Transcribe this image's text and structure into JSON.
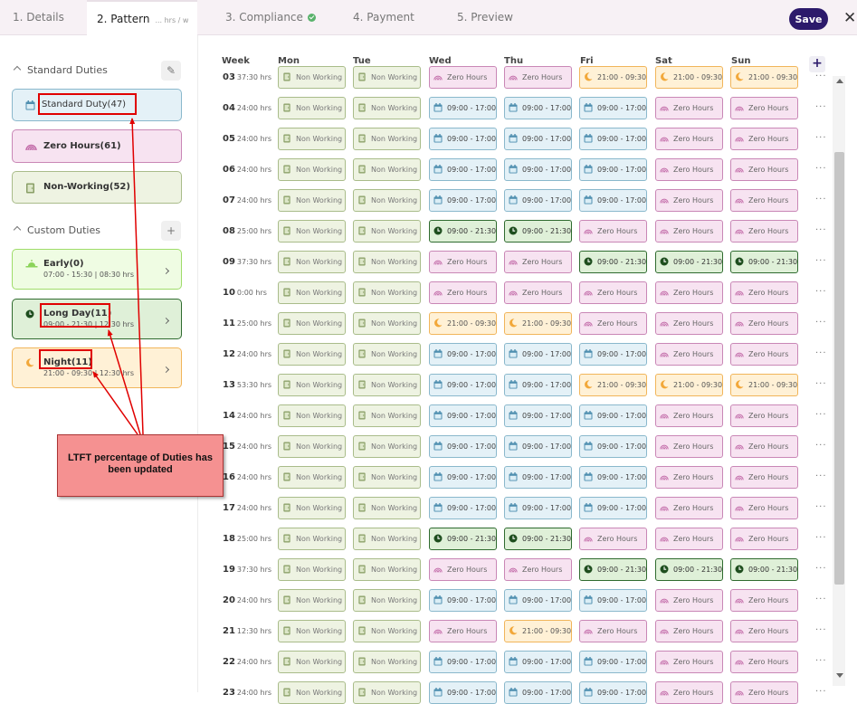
{
  "tabs": [
    {
      "label": "1. Details"
    },
    {
      "label": "2. Pattern",
      "sub": "... hrs / w"
    },
    {
      "label": "3. Compliance"
    },
    {
      "label": "4. Payment"
    },
    {
      "label": "5. Preview"
    }
  ],
  "save_label": "Save",
  "close_glyph": "✕",
  "sidebar": {
    "standard_title": "Standard Duties",
    "custom_title": "Custom Duties",
    "edit_glyph": "✎",
    "add_glyph": "+",
    "standard": [
      {
        "label": "Standard Duty(47)"
      },
      {
        "label": "Zero Hours(61)"
      },
      {
        "label": "Non-Working(52)"
      }
    ],
    "custom": [
      {
        "label": "Early(0)",
        "meta": "07:00 - 15:30 | 08:30 hrs"
      },
      {
        "label": "Long Day(11)",
        "meta": "09:00 - 21:30 | 12:30 hrs"
      },
      {
        "label": "Night(11)",
        "meta": "21:00 - 09:30 | 12:30 hrs"
      }
    ]
  },
  "grid": {
    "headers": [
      "Week",
      "Mon",
      "Tue",
      "Wed",
      "Thu",
      "Fri",
      "Sat",
      "Sun"
    ],
    "add_glyph": "+",
    "dots": "···",
    "labels": {
      "std": "09:00 - 17:00",
      "zero": "Zero Hours",
      "non": "Non Working",
      "long": "09:00 - 21:30",
      "night": "21:00 - 09:30"
    },
    "rows": [
      {
        "week": "03",
        "hrs": "37:30 hrs",
        "cells": [
          "non",
          "non",
          "zero",
          "zero",
          "night",
          "night",
          "night"
        ]
      },
      {
        "week": "04",
        "hrs": "24:00 hrs",
        "cells": [
          "non",
          "non",
          "std",
          "std",
          "std",
          "zero",
          "zero"
        ]
      },
      {
        "week": "05",
        "hrs": "24:00 hrs",
        "cells": [
          "non",
          "non",
          "std",
          "std",
          "std",
          "zero",
          "zero"
        ]
      },
      {
        "week": "06",
        "hrs": "24:00 hrs",
        "cells": [
          "non",
          "non",
          "std",
          "std",
          "std",
          "zero",
          "zero"
        ]
      },
      {
        "week": "07",
        "hrs": "24:00 hrs",
        "cells": [
          "non",
          "non",
          "std",
          "std",
          "std",
          "zero",
          "zero"
        ]
      },
      {
        "week": "08",
        "hrs": "25:00 hrs",
        "cells": [
          "non",
          "non",
          "long",
          "long",
          "zero",
          "zero",
          "zero"
        ]
      },
      {
        "week": "09",
        "hrs": "37:30 hrs",
        "cells": [
          "non",
          "non",
          "zero",
          "zero",
          "long",
          "long",
          "long"
        ]
      },
      {
        "week": "10",
        "hrs": "0:00 hrs",
        "cells": [
          "non",
          "non",
          "zero",
          "zero",
          "zero",
          "zero",
          "zero"
        ]
      },
      {
        "week": "11",
        "hrs": "25:00 hrs",
        "cells": [
          "non",
          "non",
          "night",
          "night",
          "zero",
          "zero",
          "zero"
        ]
      },
      {
        "week": "12",
        "hrs": "24:00 hrs",
        "cells": [
          "non",
          "non",
          "std",
          "std",
          "std",
          "zero",
          "zero"
        ]
      },
      {
        "week": "13",
        "hrs": "53:30 hrs",
        "cells": [
          "non",
          "non",
          "std",
          "std",
          "night",
          "night",
          "night"
        ]
      },
      {
        "week": "14",
        "hrs": "24:00 hrs",
        "cells": [
          "non",
          "non",
          "std",
          "std",
          "std",
          "zero",
          "zero"
        ]
      },
      {
        "week": "15",
        "hrs": "24:00 hrs",
        "cells": [
          "non",
          "non",
          "std",
          "std",
          "std",
          "zero",
          "zero"
        ]
      },
      {
        "week": "16",
        "hrs": "24:00 hrs",
        "cells": [
          "non",
          "non",
          "std",
          "std",
          "std",
          "zero",
          "zero"
        ]
      },
      {
        "week": "17",
        "hrs": "24:00 hrs",
        "cells": [
          "non",
          "non",
          "std",
          "std",
          "std",
          "zero",
          "zero"
        ]
      },
      {
        "week": "18",
        "hrs": "25:00 hrs",
        "cells": [
          "non",
          "non",
          "long",
          "long",
          "zero",
          "zero",
          "zero"
        ]
      },
      {
        "week": "19",
        "hrs": "37:30 hrs",
        "cells": [
          "non",
          "non",
          "zero",
          "zero",
          "long",
          "long",
          "long"
        ]
      },
      {
        "week": "20",
        "hrs": "24:00 hrs",
        "cells": [
          "non",
          "non",
          "std",
          "std",
          "std",
          "zero",
          "zero"
        ]
      },
      {
        "week": "21",
        "hrs": "12:30 hrs",
        "cells": [
          "non",
          "non",
          "zero",
          "night",
          "zero",
          "zero",
          "zero"
        ]
      },
      {
        "week": "22",
        "hrs": "24:00 hrs",
        "cells": [
          "non",
          "non",
          "std",
          "std",
          "std",
          "zero",
          "zero"
        ]
      },
      {
        "week": "23",
        "hrs": "24:00 hrs",
        "cells": [
          "non",
          "non",
          "std",
          "std",
          "std",
          "zero",
          "zero"
        ]
      }
    ]
  },
  "callout_text": "LTFT percentage of Duties has been updated",
  "colors": {
    "accent": "#2c1a6b",
    "standard": "#8ab8cc",
    "zero": "#c987b6",
    "non_working": "#a9bc8a",
    "early": "#9fdc6a",
    "long_day": "#2f6b2f",
    "night": "#f1b55a",
    "annotation": "#e00000"
  }
}
